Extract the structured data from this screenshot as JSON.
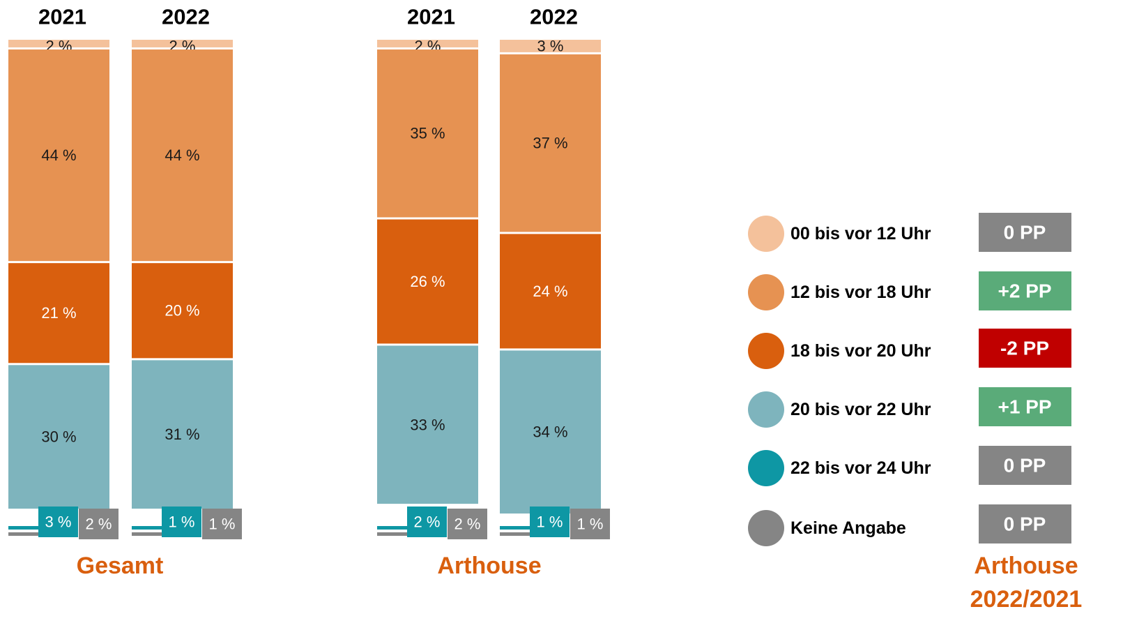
{
  "chart_data": {
    "type": "bar",
    "stacked": true,
    "series": [
      {
        "name": "00 bis vor 12 Uhr",
        "color": "#f4c19b"
      },
      {
        "name": "12 bis vor 18 Uhr",
        "color": "#e69252"
      },
      {
        "name": "18 bis vor 20 Uhr",
        "color": "#d95f0e"
      },
      {
        "name": "20 bis vor 22 Uhr",
        "color": "#7eb4bd"
      },
      {
        "name": "22 bis vor 24 Uhr",
        "color": "#0e97a4"
      },
      {
        "name": "Keine Angabe",
        "color": "#858585"
      }
    ],
    "groups": [
      {
        "name": "Gesamt",
        "bars": [
          {
            "year": "2021",
            "values": [
              2,
              44,
              21,
              30,
              3,
              2
            ],
            "labels": [
              "2 %",
              "44 %",
              "21 %",
              "30 %",
              "3 %",
              "2 %"
            ]
          },
          {
            "year": "2022",
            "values": [
              2,
              44,
              20,
              31,
              1,
              1
            ],
            "labels": [
              "2 %",
              "44 %",
              "20 %",
              "31 %",
              "1 %",
              "1 %"
            ]
          }
        ]
      },
      {
        "name": "Arthouse",
        "bars": [
          {
            "year": "2021",
            "values": [
              2,
              35,
              26,
              33,
              2,
              2
            ],
            "labels": [
              "2 %",
              "35 %",
              "26 %",
              "33 %",
              "2 %",
              "2 %"
            ]
          },
          {
            "year": "2022",
            "values": [
              3,
              37,
              24,
              34,
              1,
              1
            ],
            "labels": [
              "3 %",
              "37 %",
              "24 %",
              "34 %",
              "1 %",
              "1 %"
            ]
          }
        ]
      }
    ],
    "changes": {
      "title_line1": "Arthouse",
      "title_line2": "2022/2021",
      "items": [
        {
          "label": "0 PP",
          "color": "#858585"
        },
        {
          "label": "+2 PP",
          "color": "#5aab79"
        },
        {
          "label": "-2 PP",
          "color": "#c00000"
        },
        {
          "label": "+1 PP",
          "color": "#5aab79"
        },
        {
          "label": "0 PP",
          "color": "#858585"
        },
        {
          "label": "0 PP",
          "color": "#858585"
        }
      ]
    },
    "label_colors": {
      "dark": "#1a1a1a",
      "light": "#ffffff"
    },
    "group_title_color": "#d95f0e"
  }
}
